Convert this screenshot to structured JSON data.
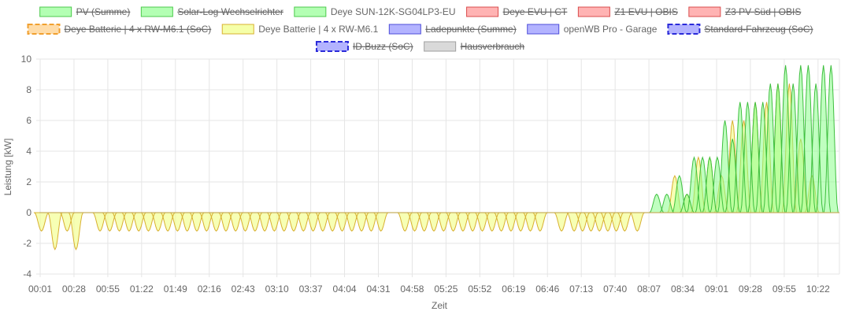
{
  "chart_data": {
    "type": "area",
    "title": "",
    "xlabel": "Zeit",
    "ylabel": "Leistung [kW]",
    "ylim": [
      -4,
      10
    ],
    "yticks": [
      -4,
      -2,
      0,
      2,
      4,
      6,
      8,
      10
    ],
    "grid": true,
    "legend_position": "top-center",
    "x_ticks": [
      "00:01",
      "00:28",
      "00:55",
      "01:22",
      "01:49",
      "02:16",
      "02:43",
      "03:10",
      "03:37",
      "04:04",
      "04:31",
      "04:58",
      "05:25",
      "05:52",
      "06:19",
      "06:46",
      "07:13",
      "07:40",
      "08:07",
      "08:34",
      "09:01",
      "09:28",
      "09:55",
      "10:22"
    ],
    "legend": [
      {
        "label": "PV (Summe)",
        "fill": "#b3ffb3",
        "stroke": "#4cc94c",
        "hidden": true,
        "dashed": false
      },
      {
        "label": "Solar-Log Wechselrichter",
        "fill": "#b3ffb3",
        "stroke": "#4cc94c",
        "hidden": true,
        "dashed": false
      },
      {
        "label": "Deye SUN-12K-SG04LP3-EU",
        "fill": "#b3ffb3",
        "stroke": "#4cc94c",
        "hidden": false,
        "dashed": false
      },
      {
        "label": "Deye EVU | CT",
        "fill": "#ffb3b3",
        "stroke": "#d94c4c",
        "hidden": true,
        "dashed": false
      },
      {
        "label": "Z1 EVU | OBIS",
        "fill": "#ffb3b3",
        "stroke": "#d94c4c",
        "hidden": true,
        "dashed": false
      },
      {
        "label": "Z3 PV Süd | OBIS",
        "fill": "#ffb3b3",
        "stroke": "#d94c4c",
        "hidden": true,
        "dashed": false
      },
      {
        "label": "Deye Batterie | 4 x RW-M6.1 (SoC)",
        "fill": "#ffdca8",
        "stroke": "#f0a030",
        "hidden": true,
        "dashed": true
      },
      {
        "label": "Deye Batterie | 4 x RW-M6.1",
        "fill": "#f5ffa8",
        "stroke": "#d8b030",
        "hidden": false,
        "dashed": false
      },
      {
        "label": "Ladepunkte (Summe)",
        "fill": "#b3b3ff",
        "stroke": "#4c4cd9",
        "hidden": true,
        "dashed": false
      },
      {
        "label": "openWB Pro - Garage",
        "fill": "#b3b3ff",
        "stroke": "#4c4cd9",
        "hidden": false,
        "dashed": false
      },
      {
        "label": "Standard-Fahrzeug (SoC)",
        "fill": "#b3b3ff",
        "stroke": "#2b2bd9",
        "hidden": true,
        "dashed": true
      },
      {
        "label": "ID.Buzz (SoC)",
        "fill": "#b3b3ff",
        "stroke": "#2b2bd9",
        "hidden": true,
        "dashed": true
      },
      {
        "label": "Hausverbrauch",
        "fill": "#d9d9d9",
        "stroke": "#a0a0a0",
        "hidden": true,
        "dashed": false
      }
    ],
    "series": [
      {
        "name": "Deye Batterie | 4 x RW-M6.1",
        "description": "battery discharge dips (kW), approx. centre time in minutes since 00:01",
        "fill": "rgba(242,255,140,0.65)",
        "stroke": "#d8b030",
        "dips": [
          {
            "t": 5,
            "v": -1.2
          },
          {
            "t": 37,
            "v": -2.4
          },
          {
            "t": 66,
            "v": -1.2
          },
          {
            "t": 87,
            "v": -2.4
          },
          {
            "t": 144,
            "v": -1.2
          },
          {
            "t": 167,
            "v": -1.2
          },
          {
            "t": 190,
            "v": -1.2
          },
          {
            "t": 213,
            "v": -1.2
          },
          {
            "t": 236,
            "v": -1.2
          },
          {
            "t": 259,
            "v": -1.2
          },
          {
            "t": 282,
            "v": -1.2
          },
          {
            "t": 305,
            "v": -1.2
          },
          {
            "t": 328,
            "v": -1.2
          },
          {
            "t": 351,
            "v": -1.2
          },
          {
            "t": 374,
            "v": -1.2
          },
          {
            "t": 397,
            "v": -1.2
          },
          {
            "t": 420,
            "v": -1.2
          },
          {
            "t": 443,
            "v": -1.2
          },
          {
            "t": 466,
            "v": -1.2
          },
          {
            "t": 489,
            "v": -1.2
          },
          {
            "t": 512,
            "v": -1.2
          },
          {
            "t": 535,
            "v": -1.2
          },
          {
            "t": 558,
            "v": -1.2
          },
          {
            "t": 581,
            "v": -1.2
          },
          {
            "t": 604,
            "v": -1.2
          },
          {
            "t": 627,
            "v": -1.2
          },
          {
            "t": 650,
            "v": -1.2
          },
          {
            "t": 673,
            "v": -1.2
          },
          {
            "t": 696,
            "v": -1.2
          },
          {
            "t": 719,
            "v": -1.2
          },
          {
            "t": 742,
            "v": -1.2
          },
          {
            "t": 765,
            "v": -1.2
          },
          {
            "t": 788,
            "v": -1.2
          },
          {
            "t": 811,
            "v": -1.2
          },
          {
            "t": 868,
            "v": -1.2
          },
          {
            "t": 891,
            "v": -1.2
          },
          {
            "t": 914,
            "v": -1.2
          },
          {
            "t": 937,
            "v": -1.2
          },
          {
            "t": 960,
            "v": -1.2
          },
          {
            "t": 983,
            "v": -1.2
          },
          {
            "t": 1006,
            "v": -1.2
          },
          {
            "t": 1029,
            "v": -1.2
          },
          {
            "t": 1052,
            "v": -1.2
          },
          {
            "t": 1075,
            "v": -1.2
          },
          {
            "t": 1097,
            "v": -1.2
          },
          {
            "t": 1120,
            "v": -1.2
          },
          {
            "t": 1143,
            "v": -1.2
          },
          {
            "t": 1166,
            "v": -1.2
          },
          {
            "t": 1189,
            "v": -1.2
          },
          {
            "t": 1240,
            "v": -1.2
          },
          {
            "t": 1270,
            "v": -1.2
          },
          {
            "t": 1290,
            "v": -1.2
          },
          {
            "t": 1310,
            "v": -1.2
          },
          {
            "t": 1330,
            "v": -1.2
          },
          {
            "t": 1350,
            "v": -1.2
          },
          {
            "t": 1370,
            "v": -1.2
          },
          {
            "t": 1390,
            "v": -1.2
          },
          {
            "t": 1420,
            "v": -1.2
          }
        ],
        "peaks": [
          {
            "t": 1509,
            "v": 2.4
          },
          {
            "t": 1538,
            "v": 1.2
          },
          {
            "t": 1565,
            "v": 3.6
          },
          {
            "t": 1592,
            "v": 3.6
          },
          {
            "t": 1620,
            "v": 2.4
          },
          {
            "t": 1646,
            "v": 6.0
          },
          {
            "t": 1673,
            "v": 6.0
          },
          {
            "t": 1700,
            "v": 7.2
          },
          {
            "t": 1727,
            "v": 7.2
          },
          {
            "t": 1754,
            "v": 8.4
          },
          {
            "t": 1781,
            "v": 8.4
          },
          {
            "t": 1808,
            "v": 4.8
          },
          {
            "t": 1835,
            "v": 2.4
          }
        ]
      },
      {
        "name": "Deye SUN-12K-SG04LP3-EU",
        "description": "PV production peaks (kW), approx. centre time in minutes since 00:01",
        "fill": "rgba(140,255,140,0.55)",
        "stroke": "#3fbf3f",
        "peaks": [
          {
            "t": 1466,
            "v": 1.2
          },
          {
            "t": 1490,
            "v": 1.2
          },
          {
            "t": 1520,
            "v": 2.4
          },
          {
            "t": 1538,
            "v": 1.2
          },
          {
            "t": 1555,
            "v": 3.6
          },
          {
            "t": 1575,
            "v": 3.6
          },
          {
            "t": 1592,
            "v": 3.6
          },
          {
            "t": 1610,
            "v": 3.6
          },
          {
            "t": 1628,
            "v": 6.0
          },
          {
            "t": 1646,
            "v": 4.8
          },
          {
            "t": 1664,
            "v": 7.2
          },
          {
            "t": 1682,
            "v": 7.2
          },
          {
            "t": 1700,
            "v": 7.2
          },
          {
            "t": 1718,
            "v": 7.2
          },
          {
            "t": 1736,
            "v": 8.4
          },
          {
            "t": 1754,
            "v": 8.4
          },
          {
            "t": 1772,
            "v": 9.6
          },
          {
            "t": 1790,
            "v": 8.4
          },
          {
            "t": 1808,
            "v": 9.6
          },
          {
            "t": 1826,
            "v": 9.6
          },
          {
            "t": 1844,
            "v": 8.4
          },
          {
            "t": 1862,
            "v": 9.6
          },
          {
            "t": 1880,
            "v": 9.6
          }
        ]
      }
    ]
  }
}
